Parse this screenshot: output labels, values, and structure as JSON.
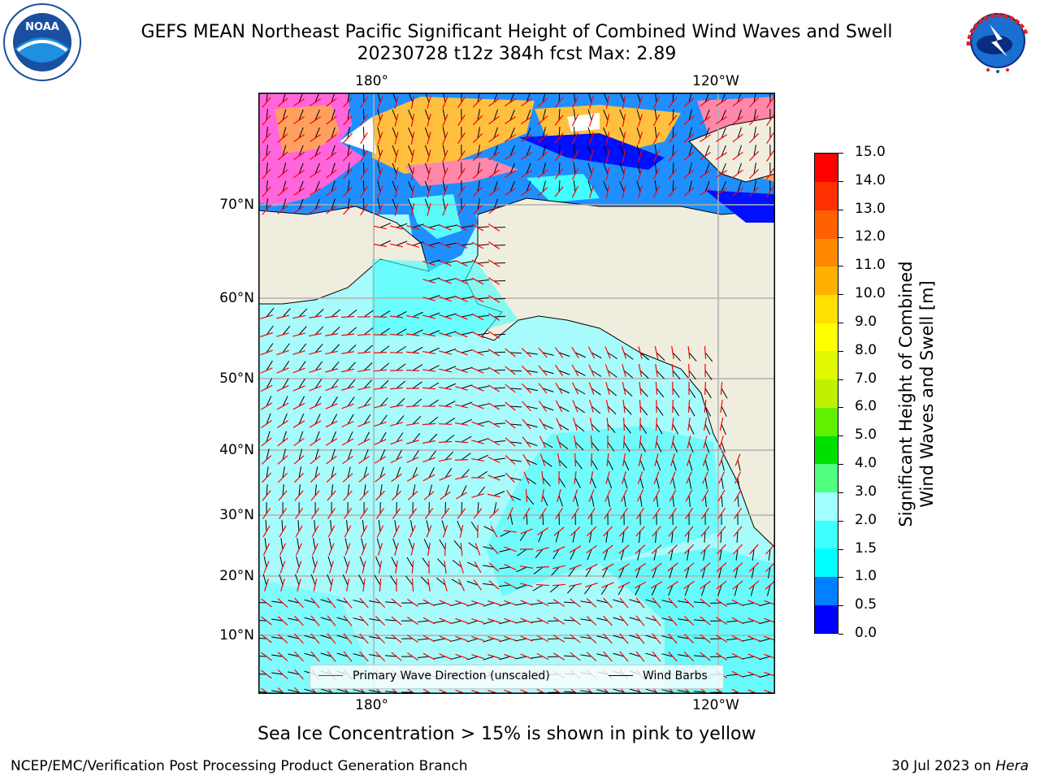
{
  "title": {
    "line1": "GEFS MEAN Northeast Pacific Significant Height of Combined Wind Waves and Swell",
    "line2": "20230728 t12z 384h fcst   Max: 2.89"
  },
  "logos": {
    "left": "noaa-logo",
    "right": "national-weather-service-logo",
    "left_text": "NOAA",
    "right_text": "NATIONAL WEATHER SERVICE"
  },
  "axes": {
    "lon_labels": [
      "180°",
      "120°W"
    ],
    "lat_labels": [
      "70°N",
      "60°N",
      "50°N",
      "40°N",
      "30°N",
      "20°N",
      "10°N"
    ]
  },
  "colorbar": {
    "label_line1": "Significant Height of Combined",
    "label_line2": "Wind Waves and Swell [m]",
    "ticks": [
      "0.0",
      "0.5",
      "1.0",
      "1.5",
      "2.0",
      "3.0",
      "4.0",
      "5.0",
      "6.0",
      "7.0",
      "8.0",
      "9.0",
      "10.0",
      "11.0",
      "12.0",
      "13.0",
      "14.0",
      "15.0"
    ],
    "colors": [
      "#0000ff",
      "#0080ff",
      "#00ffff",
      "#40ffff",
      "#a0ffff",
      "#50ff80",
      "#00e000",
      "#60f000",
      "#c0f000",
      "#e0f800",
      "#ffff00",
      "#ffe000",
      "#ffb000",
      "#ff8800",
      "#ff6000",
      "#ff3000",
      "#ff0000"
    ]
  },
  "legend": {
    "wave_label": "Primary Wave Direction (unscaled)",
    "wind_label": "Wind Barbs",
    "wave_color": "#ff0000",
    "wind_color": "#000000"
  },
  "colors": {
    "land": "#efedde",
    "sea_ice_colors": [
      "#ff44dd",
      "#ff88aa",
      "#ffa060",
      "#ffc040"
    ],
    "wave_fill": "#a8fbfb",
    "wave_fill_2": "#58fafa",
    "grid": "#b0b0b0"
  },
  "footnote": "Sea Ice Concentration > 15% is shown in pink to yellow",
  "footer": {
    "left": "NCEP/EMC/Verification Post Processing Product Generation Branch",
    "right_date": "30 Jul 2023 on ",
    "right_host": "Hera"
  }
}
